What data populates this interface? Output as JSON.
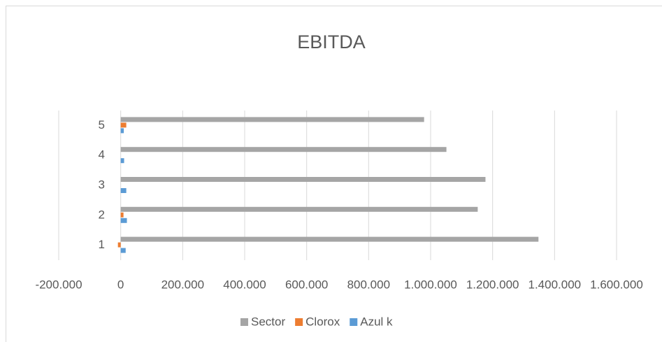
{
  "chart_data": {
    "type": "hbar",
    "title": "EBITDA",
    "categories": [
      "1",
      "2",
      "3",
      "4",
      "5"
    ],
    "series": [
      {
        "name": "Sector",
        "color": "#a5a5a5",
        "values": [
          1348000,
          1152000,
          1177000,
          1051000,
          979000
        ]
      },
      {
        "name": "Clorox",
        "color": "#ed7d31",
        "values": [
          -9000,
          9000,
          0,
          0,
          18000
        ]
      },
      {
        "name": "Azul k",
        "color": "#5b9bd5",
        "values": [
          16000,
          20000,
          18000,
          11000,
          10000
        ]
      }
    ],
    "xlim": [
      -200000,
      1600000
    ],
    "xticks": [
      {
        "value": -200000,
        "label": "-200.000"
      },
      0,
      {
        "value": 200000,
        "label": "200.000"
      },
      {
        "value": 400000,
        "label": "400.000"
      },
      {
        "value": 600000,
        "label": "600.000"
      },
      {
        "value": 800000,
        "label": "800.000"
      },
      {
        "value": 1000000,
        "label": "1.000.000"
      },
      {
        "value": 1200000,
        "label": "1.200.000"
      },
      {
        "value": 1400000,
        "label": "1.400.000"
      },
      {
        "value": 1600000,
        "label": "1.600.000"
      }
    ],
    "grid": true,
    "legend": "bottom"
  }
}
